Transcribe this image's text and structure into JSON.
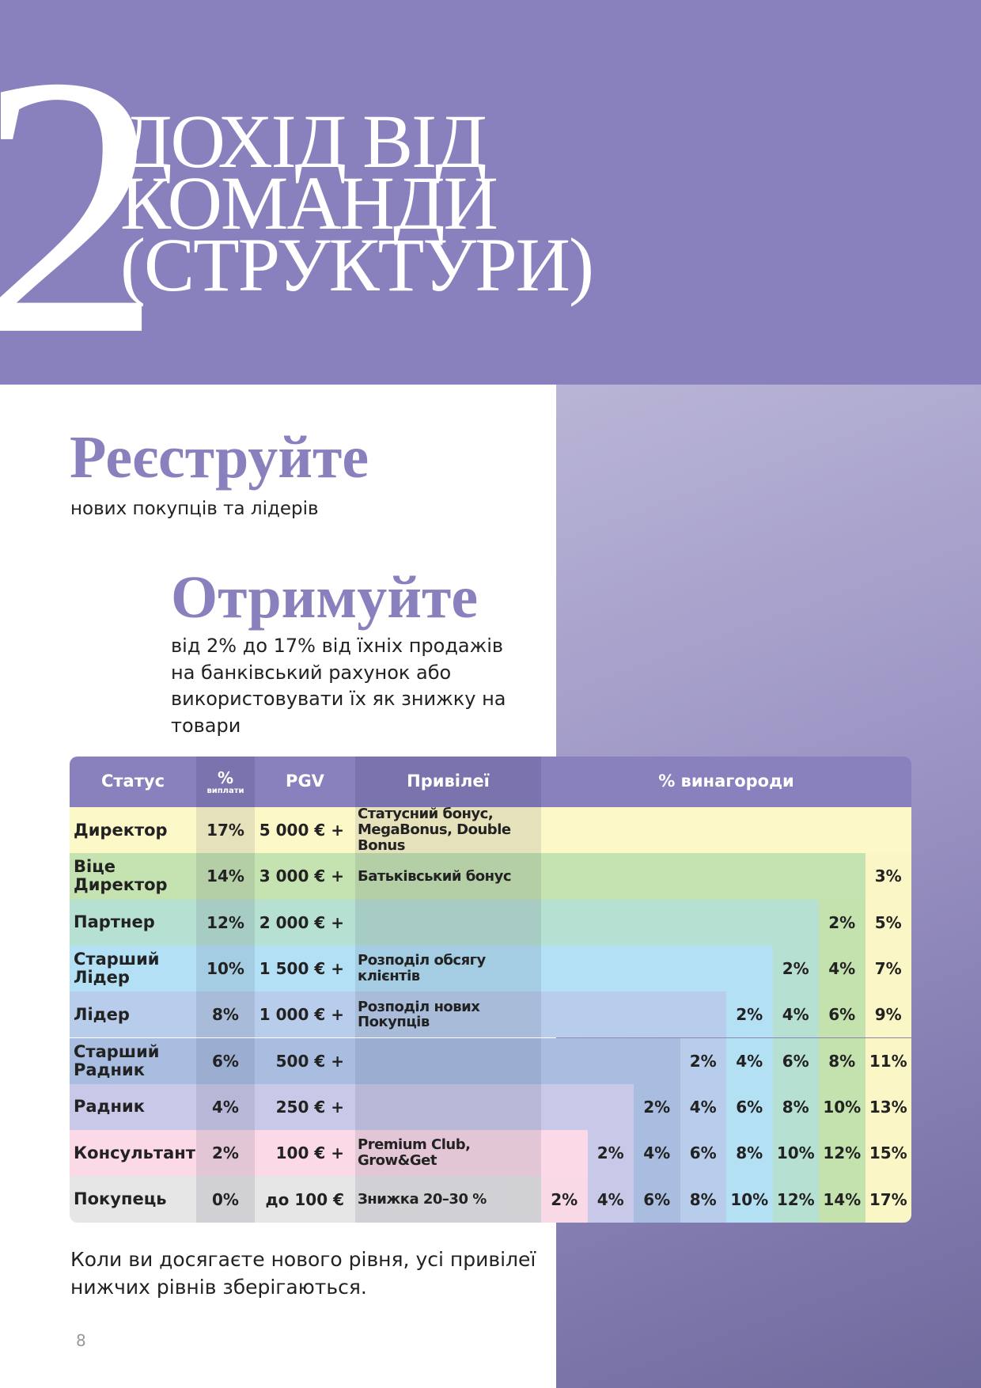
{
  "header": {
    "number": "2",
    "title_lines": [
      "ДОХІД ВІД",
      "КОМАНДИ",
      "(СТРУКТУРИ)"
    ]
  },
  "section1": {
    "heading": "Реєструйте",
    "text": "нових покупців та лідерів"
  },
  "section2": {
    "heading": "Отримуйте",
    "lines": [
      "від 2% до 17% від їхніх продажів",
      "на банківський рахунок або",
      "використовувати їх як знижку на",
      "товари"
    ]
  },
  "table": {
    "headers": {
      "status": "Статус",
      "percent": "%",
      "percent_sub": "виплати",
      "pgv": "PGV",
      "privileges": "Привілеї",
      "reward": "% винагороди"
    },
    "rows": [
      {
        "status": "Директор",
        "percent": "17%",
        "pgv": "5 000 € +",
        "privileges": "Статусний бонус, MegaBonus, Double Bonus",
        "rewards": []
      },
      {
        "status": "Віце Директор",
        "percent": "14%",
        "pgv": "3 000 € +",
        "privileges": "Батьківський бонус",
        "rewards": [
          "3%"
        ]
      },
      {
        "status": "Партнер",
        "percent": "12%",
        "pgv": "2 000 € +",
        "privileges": "",
        "rewards": [
          "2%",
          "5%"
        ]
      },
      {
        "status": "Старший Лідер",
        "percent": "10%",
        "pgv": "1 500 € +",
        "privileges": "Розподіл обсягу клієнтів",
        "rewards": [
          "2%",
          "4%",
          "7%"
        ]
      },
      {
        "status": "Лідер",
        "percent": "8%",
        "pgv": "1 000 € +",
        "privileges": "Розподіл нових Покупців",
        "rewards": [
          "2%",
          "4%",
          "6%",
          "9%"
        ]
      },
      {
        "status": "Старший Радник",
        "percent": "6%",
        "pgv": "500 € +",
        "privileges": "",
        "rewards": [
          "2%",
          "4%",
          "6%",
          "8%",
          "11%"
        ]
      },
      {
        "status": "Радник",
        "percent": "4%",
        "pgv": "250 € +",
        "privileges": "",
        "rewards": [
          "2%",
          "4%",
          "6%",
          "8%",
          "10%",
          "13%"
        ]
      },
      {
        "status": "Консультант",
        "percent": "2%",
        "pgv": "100 € +",
        "privileges": "Premium Club, Grow&Get",
        "rewards": [
          "2%",
          "4%",
          "6%",
          "8%",
          "10%",
          "12%",
          "15%"
        ]
      },
      {
        "status": "Покупець",
        "percent": "0%",
        "pgv": "до 100 €",
        "privileges": "Знижка 20–30 %",
        "rewards": [
          "2%",
          "4%",
          "6%",
          "8%",
          "10%",
          "12%",
          "14%",
          "17%"
        ]
      }
    ]
  },
  "footer_note": "Коли ви досягаєте нового рівня, усі привілеї нижчих рівнів зберігаються.",
  "page_number": "8"
}
